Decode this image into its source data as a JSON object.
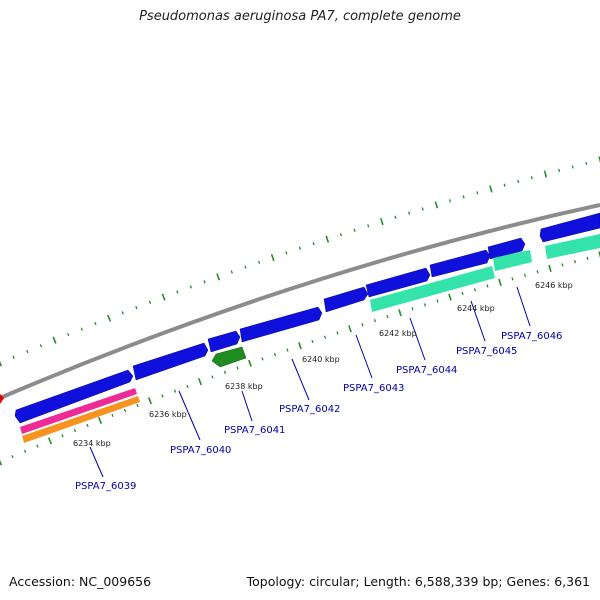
{
  "title": "Pseudomonas aeruginosa PA7, complete genome",
  "footer": {
    "accession": "Accession: NC_009656",
    "summary": "Topology: circular; Length: 6,588,339 bp; Genes: 6,361"
  },
  "colors": {
    "backbone": "#8c8c8c",
    "cds_forward": "#1010dd",
    "cds_reverse_green": "#1e8c1e",
    "feature_teal": "#33e3aa",
    "feature_pink": "#ee2a96",
    "feature_orange": "#f7931e",
    "ticks": "#2a8a2a",
    "marker_red": "#ee0000",
    "label_blue": "#0000aa"
  },
  "kbp_labels": [
    "6234 kbp",
    "6236 kbp",
    "6238 kbp",
    "6240 kbp",
    "6242 kbp",
    "6244 kbp",
    "6246 kbp"
  ],
  "gene_labels": [
    "PSPA7_6039",
    "PSPA7_6040",
    "PSPA7_6041",
    "PSPA7_6042",
    "PSPA7_6043",
    "PSPA7_6044",
    "PSPA7_6045",
    "PSPA7_6046"
  ]
}
